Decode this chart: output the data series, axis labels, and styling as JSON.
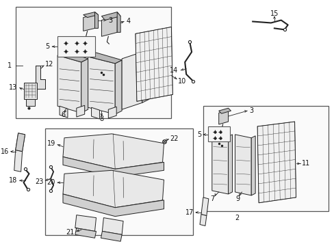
{
  "bg": "#ffffff",
  "lc": "#222222",
  "box_ec": "#555555",
  "fill_light": "#e8e8e8",
  "fill_mid": "#d0d0d0",
  "fill_dark": "#b8b8b8",
  "label_fs": 7.0,
  "lw": 0.7
}
